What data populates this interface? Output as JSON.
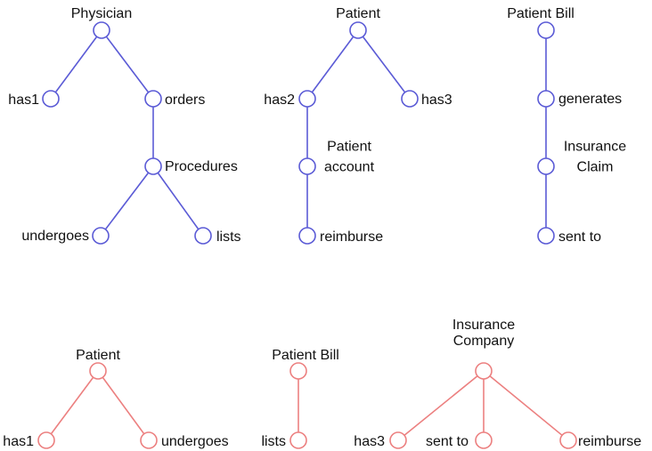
{
  "colors": {
    "blue": "#5b5bd6",
    "red": "#ec8080"
  },
  "trees": [
    {
      "color": "blue",
      "nodes": [
        {
          "id": "physician",
          "label": "Physician"
        },
        {
          "id": "has1",
          "label": "has1"
        },
        {
          "id": "orders",
          "label": "orders"
        },
        {
          "id": "procedures",
          "label": "Procedures"
        },
        {
          "id": "undergoes",
          "label": "undergoes"
        },
        {
          "id": "lists",
          "label": "lists"
        }
      ],
      "edges": [
        [
          "physician",
          "has1"
        ],
        [
          "physician",
          "orders"
        ],
        [
          "orders",
          "procedures"
        ],
        [
          "procedures",
          "undergoes"
        ],
        [
          "procedures",
          "lists"
        ]
      ]
    },
    {
      "color": "blue",
      "nodes": [
        {
          "id": "patient",
          "label": "Patient"
        },
        {
          "id": "has2",
          "label": "has2"
        },
        {
          "id": "has3",
          "label": "has3"
        },
        {
          "id": "patient-account",
          "label": [
            "Patient",
            "account"
          ]
        },
        {
          "id": "reimburse",
          "label": "reimburse"
        }
      ],
      "edges": [
        [
          "patient",
          "has2"
        ],
        [
          "patient",
          "has3"
        ],
        [
          "has2",
          "patient-account"
        ],
        [
          "patient-account",
          "reimburse"
        ]
      ]
    },
    {
      "color": "blue",
      "nodes": [
        {
          "id": "patient-bill",
          "label": "Patient Bill"
        },
        {
          "id": "generates",
          "label": "generates"
        },
        {
          "id": "insurance-claim",
          "label": [
            "Insurance",
            "Claim"
          ]
        },
        {
          "id": "sent-to",
          "label": "sent to"
        }
      ],
      "edges": [
        [
          "patient-bill",
          "generates"
        ],
        [
          "generates",
          "insurance-claim"
        ],
        [
          "insurance-claim",
          "sent-to"
        ]
      ]
    },
    {
      "color": "red",
      "nodes": [
        {
          "id": "patient-2",
          "label": "Patient"
        },
        {
          "id": "has1-2",
          "label": "has1"
        },
        {
          "id": "undergoes-2",
          "label": "undergoes"
        }
      ],
      "edges": [
        [
          "patient-2",
          "has1-2"
        ],
        [
          "patient-2",
          "undergoes-2"
        ]
      ]
    },
    {
      "color": "red",
      "nodes": [
        {
          "id": "patient-bill-2",
          "label": "Patient Bill"
        },
        {
          "id": "lists-2",
          "label": "lists"
        }
      ],
      "edges": [
        [
          "patient-bill-2",
          "lists-2"
        ]
      ]
    },
    {
      "color": "red",
      "nodes": [
        {
          "id": "insurance-company",
          "label": [
            "Insurance",
            "Company"
          ]
        },
        {
          "id": "has3-2",
          "label": "has3"
        },
        {
          "id": "sent-to-2",
          "label": "sent to"
        },
        {
          "id": "reimburse-2",
          "label": "reimburse"
        }
      ],
      "edges": [
        [
          "insurance-company",
          "has3-2"
        ],
        [
          "insurance-company",
          "sent-to-2"
        ],
        [
          "insurance-company",
          "reimburse-2"
        ]
      ]
    }
  ]
}
